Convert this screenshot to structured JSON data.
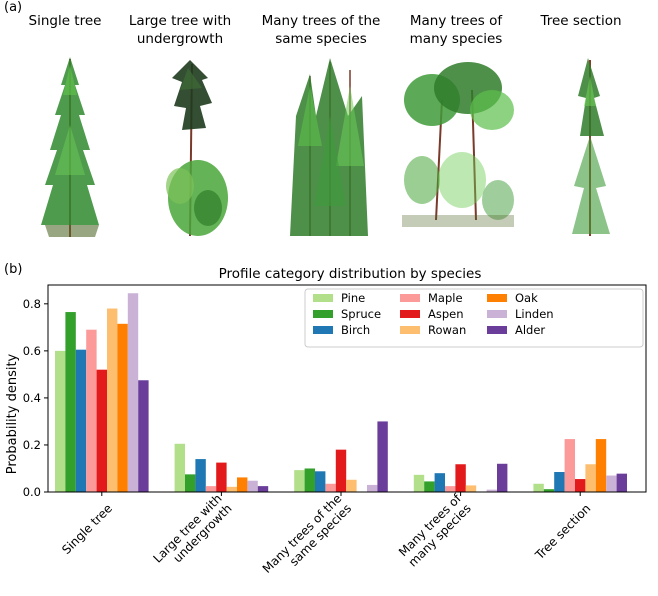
{
  "panel_a_label": "(a)",
  "panel_b_label": "(b)",
  "tree_titles": [
    {
      "line1": "Single tree",
      "line2": ""
    },
    {
      "line1": "Large tree with",
      "line2": "undergrowth"
    },
    {
      "line1": "Many trees of the",
      "line2": "same species"
    },
    {
      "line1": "Many trees of",
      "line2": "many species"
    },
    {
      "line1": "Tree section",
      "line2": ""
    }
  ],
  "chart_data": {
    "type": "bar",
    "title": "Profile category distribution by species",
    "xlabel": "",
    "ylabel": "Probability density",
    "ylim": [
      0,
      0.88
    ],
    "yticks": [
      "0.0",
      "0.2",
      "0.4",
      "0.6",
      "0.8"
    ],
    "legend_position": "top-right",
    "categories": [
      [
        "Single tree"
      ],
      [
        "Large tree with",
        "undergrowth"
      ],
      [
        "Many trees of the",
        "same species"
      ],
      [
        "Many trees of",
        "many species"
      ],
      [
        "Tree section"
      ]
    ],
    "series": [
      {
        "name": "Pine",
        "color": "#b2df8a",
        "values": [
          0.6,
          0.205,
          0.093,
          0.073,
          0.035
        ]
      },
      {
        "name": "Spruce",
        "color": "#33a02c",
        "values": [
          0.765,
          0.075,
          0.1,
          0.045,
          0.012
        ]
      },
      {
        "name": "Birch",
        "color": "#1f78b4",
        "values": [
          0.605,
          0.14,
          0.088,
          0.08,
          0.085
        ]
      },
      {
        "name": "Maple",
        "color": "#fb9a99",
        "values": [
          0.69,
          0.025,
          0.035,
          0.025,
          0.225
        ]
      },
      {
        "name": "Aspen",
        "color": "#e31a1c",
        "values": [
          0.52,
          0.125,
          0.18,
          0.118,
          0.055
        ]
      },
      {
        "name": "Rowan",
        "color": "#fdbf6f",
        "values": [
          0.78,
          0.022,
          0.052,
          0.028,
          0.118
        ]
      },
      {
        "name": "Oak",
        "color": "#ff7f00",
        "values": [
          0.715,
          0.062,
          0.0,
          0.0,
          0.225
        ]
      },
      {
        "name": "Linden",
        "color": "#cab2d6",
        "values": [
          0.845,
          0.048,
          0.03,
          0.01,
          0.07
        ]
      },
      {
        "name": "Alder",
        "color": "#6a3d9a",
        "values": [
          0.475,
          0.025,
          0.3,
          0.12,
          0.078
        ]
      }
    ]
  }
}
